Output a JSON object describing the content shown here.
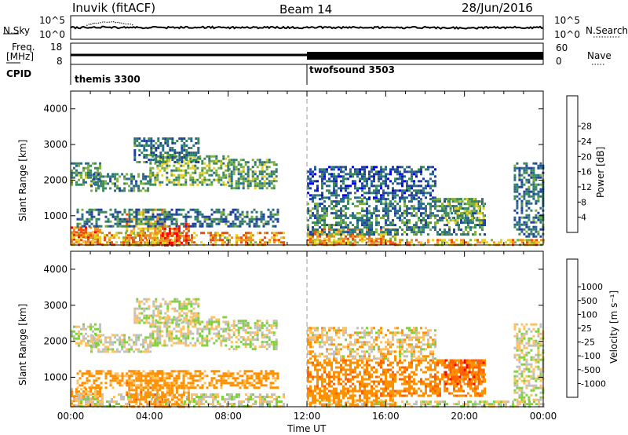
{
  "header": {
    "station": "Inuvik (fitACF)",
    "beam": "Beam 14",
    "date": "28/Jun/2016"
  },
  "noise_panel": {
    "left_label": "N.Sky",
    "right_label": "N.Search",
    "ticks_left": [
      "10^5",
      "10^0"
    ],
    "ticks_right": [
      "10^5",
      "10^0"
    ]
  },
  "freq_panel": {
    "left_label_line1": "Freq.",
    "left_label_line2": "[MHz]",
    "right_label": "Nave",
    "ticks_left": [
      "18",
      "8"
    ],
    "ticks_right": [
      "60",
      "0"
    ]
  },
  "cpid_panel": {
    "label": "CPID",
    "segments": [
      {
        "name": "themis 3300",
        "start_hour": 0
      },
      {
        "name": "twofsound 3503",
        "start_hour": 12
      }
    ]
  },
  "time_axis": {
    "title": "Time UT",
    "ticks": [
      "00:00",
      "04:00",
      "08:00",
      "12:00",
      "16:00",
      "20:00",
      "00:00"
    ]
  },
  "colors": {
    "power_scale": [
      "#0000ff",
      "#2040a0",
      "#2a6a8a",
      "#3a8a5a",
      "#80b040",
      "#e8d020",
      "#f09020",
      "#e85010",
      "#ff0000"
    ],
    "velocity_scale": [
      "#ff0000",
      "#ff6000",
      "#ff9000",
      "#ffc060",
      "#c0c0c0",
      "#c0c0c0",
      "#80d040",
      "#40a060",
      "#2a6090",
      "#2040c0"
    ]
  },
  "chart_data": [
    {
      "type": "heatmap",
      "name": "power",
      "ylabel": "Slant Range [km]",
      "xlim": [
        0,
        24
      ],
      "ylim": [
        180,
        4500
      ],
      "yticks": [
        1000,
        2000,
        3000,
        4000
      ],
      "colorbar": {
        "label": "Power [dB]",
        "ticks": [
          "4",
          "8",
          "12",
          "16",
          "20",
          "24",
          "28"
        ],
        "range": [
          0,
          30
        ]
      },
      "regions": [
        {
          "t0": 0.0,
          "t1": 1.5,
          "r0": 180,
          "r1": 700,
          "level": 24
        },
        {
          "t0": 0.0,
          "t1": 10.8,
          "r0": 180,
          "r1": 550,
          "level": 22
        },
        {
          "t0": 2.8,
          "t1": 4.8,
          "r0": 200,
          "r1": 1200,
          "level": 20
        },
        {
          "t0": 4.5,
          "t1": 6.0,
          "r0": 200,
          "r1": 800,
          "level": 26
        },
        {
          "t0": 0.0,
          "t1": 1.5,
          "r0": 1900,
          "r1": 2500,
          "level": 12
        },
        {
          "t0": 1.0,
          "t1": 4.0,
          "r0": 1700,
          "r1": 2200,
          "level": 10
        },
        {
          "t0": 4.0,
          "t1": 8.0,
          "r0": 1900,
          "r1": 2700,
          "level": 14
        },
        {
          "t0": 8.0,
          "t1": 10.5,
          "r0": 1800,
          "r1": 2600,
          "level": 12
        },
        {
          "t0": 3.2,
          "t1": 6.5,
          "r0": 2500,
          "r1": 3200,
          "level": 8
        },
        {
          "t0": 0.3,
          "t1": 10.5,
          "r0": 700,
          "r1": 1200,
          "level": 8
        },
        {
          "t0": 12.0,
          "t1": 24.0,
          "r0": 180,
          "r1": 350,
          "level": 20
        },
        {
          "t0": 12.0,
          "t1": 16.5,
          "r0": 200,
          "r1": 650,
          "level": 22
        },
        {
          "t0": 12.0,
          "t1": 21.0,
          "r0": 500,
          "r1": 1500,
          "level": 10
        },
        {
          "t0": 12.0,
          "t1": 18.5,
          "r0": 1500,
          "r1": 2400,
          "level": 6
        },
        {
          "t0": 19.0,
          "t1": 21.0,
          "r0": 800,
          "r1": 1500,
          "level": 14
        },
        {
          "t0": 22.5,
          "t1": 24.0,
          "r0": 400,
          "r1": 2500,
          "level": 8
        }
      ]
    },
    {
      "type": "heatmap",
      "name": "velocity",
      "ylabel": "Slant Range [km]",
      "xlim": [
        0,
        24
      ],
      "ylim": [
        180,
        4500
      ],
      "yticks": [
        1000,
        2000,
        3000,
        4000
      ],
      "colorbar": {
        "label": "Velocity [m s⁻¹]",
        "ticks": [
          "-1000",
          "-500",
          "-100",
          "-25",
          "25",
          "100",
          "500",
          "1000"
        ],
        "range": [
          -1200,
          1200
        ]
      },
      "regions": [
        {
          "t0": 0.0,
          "t1": 1.5,
          "r0": 180,
          "r1": 700,
          "level": -150
        },
        {
          "t0": 0.0,
          "t1": 10.8,
          "r0": 180,
          "r1": 550,
          "level": 0
        },
        {
          "t0": 2.8,
          "t1": 4.8,
          "r0": 200,
          "r1": 1200,
          "level": -300
        },
        {
          "t0": 4.5,
          "t1": 6.0,
          "r0": 200,
          "r1": 800,
          "level": -200
        },
        {
          "t0": 0.0,
          "t1": 1.5,
          "r0": 1900,
          "r1": 2500,
          "level": 0
        },
        {
          "t0": 1.0,
          "t1": 4.0,
          "r0": 1700,
          "r1": 2200,
          "level": 0
        },
        {
          "t0": 4.0,
          "t1": 8.0,
          "r0": 1900,
          "r1": 2700,
          "level": 0
        },
        {
          "t0": 8.0,
          "t1": 10.5,
          "r0": 1800,
          "r1": 2600,
          "level": 0
        },
        {
          "t0": 3.2,
          "t1": 6.5,
          "r0": 2500,
          "r1": 3200,
          "level": 0
        },
        {
          "t0": 0.3,
          "t1": 10.5,
          "r0": 700,
          "r1": 1200,
          "level": -200
        },
        {
          "t0": 12.0,
          "t1": 24.0,
          "r0": 180,
          "r1": 350,
          "level": 0
        },
        {
          "t0": 12.0,
          "t1": 16.5,
          "r0": 200,
          "r1": 650,
          "level": -250
        },
        {
          "t0": 12.0,
          "t1": 21.0,
          "r0": 500,
          "r1": 1500,
          "level": -350
        },
        {
          "t0": 12.0,
          "t1": 18.5,
          "r0": 1500,
          "r1": 2400,
          "level": -50
        },
        {
          "t0": 19.0,
          "t1": 21.0,
          "r0": 800,
          "r1": 1500,
          "level": -700
        },
        {
          "t0": 22.5,
          "t1": 24.0,
          "r0": 400,
          "r1": 2500,
          "level": 0
        }
      ]
    }
  ]
}
